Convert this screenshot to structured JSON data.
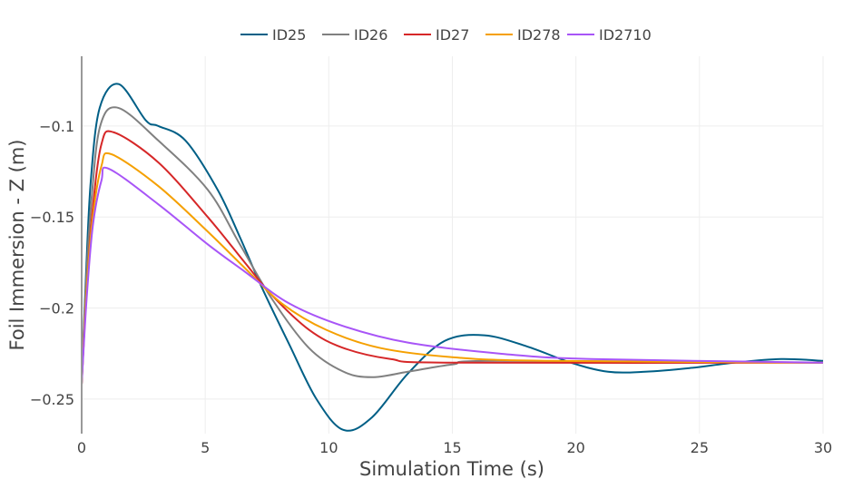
{
  "chart_data": {
    "type": "line",
    "title": "",
    "xlabel": "Simulation Time (s)",
    "ylabel": "Foil Immersion - Z (m)",
    "xlim": [
      0,
      30
    ],
    "ylim": [
      -0.269,
      -0.0617
    ],
    "xticks": [
      0,
      5,
      10,
      15,
      20,
      25,
      30
    ],
    "xtick_labels": [
      "0",
      "5",
      "10",
      "15",
      "20",
      "25",
      "30"
    ],
    "yticks": [
      -0.1,
      -0.15,
      -0.2,
      -0.25
    ],
    "ytick_labels": [
      "−0.1",
      "−0.15",
      "−0.2",
      "−0.25"
    ],
    "grid": true,
    "legend_placement": "top-center",
    "series": [
      {
        "name": "ID25",
        "color": "#005f86",
        "x": [
          0,
          0.18,
          0.37,
          0.73,
          1.5,
          2.6,
          3.1,
          4.2,
          5.5,
          6.4,
          7.3,
          8.4,
          9.5,
          10.6,
          11.75,
          13.2,
          14.7,
          16.3,
          18,
          19.8,
          21.3,
          22.8,
          24.6,
          26.4,
          28.3,
          30
        ],
        "y": [
          -0.242,
          -0.18,
          -0.13,
          -0.09,
          -0.077,
          -0.097,
          -0.1,
          -0.108,
          -0.135,
          -0.161,
          -0.189,
          -0.22,
          -0.25,
          -0.267,
          -0.26,
          -0.236,
          -0.218,
          -0.215,
          -0.221,
          -0.23,
          -0.235,
          -0.235,
          -0.233,
          -0.23,
          -0.228,
          -0.229
        ]
      },
      {
        "name": "ID26",
        "color": "#808080",
        "x": [
          0,
          0.18,
          0.4,
          0.75,
          1.47,
          3.1,
          5.1,
          6.4,
          7.7,
          9.2,
          10.6,
          11.75,
          13.2,
          15,
          16.9,
          30
        ],
        "y": [
          -0.242,
          -0.185,
          -0.14,
          -0.1,
          -0.09,
          -0.108,
          -0.135,
          -0.165,
          -0.195,
          -0.222,
          -0.235,
          -0.238,
          -0.235,
          -0.231,
          -0.229,
          -0.23
        ]
      },
      {
        "name": "ID27",
        "color": "#d62728",
        "x": [
          0,
          0.2,
          0.45,
          0.8,
          1.3,
          3.1,
          5.1,
          6.6,
          7.7,
          9.2,
          10.6,
          12.5,
          15,
          30
        ],
        "y": [
          -0.242,
          -0.19,
          -0.145,
          -0.11,
          -0.1035,
          -0.12,
          -0.15,
          -0.175,
          -0.193,
          -0.212,
          -0.222,
          -0.228,
          -0.23,
          -0.23
        ]
      },
      {
        "name": "ID278",
        "color": "#f5a000",
        "x": [
          0,
          0.2,
          0.45,
          0.8,
          1.2,
          3.1,
          5.1,
          6.6,
          8.1,
          9.9,
          12.1,
          15,
          18.7,
          30
        ],
        "y": [
          -0.242,
          -0.19,
          -0.15,
          -0.122,
          -0.1155,
          -0.133,
          -0.158,
          -0.178,
          -0.1975,
          -0.212,
          -0.222,
          -0.227,
          -0.229,
          -0.23
        ]
      },
      {
        "name": "ID2710",
        "color": "#a855f7",
        "x": [
          0,
          0.2,
          0.45,
          0.8,
          1.1,
          3.1,
          5.1,
          6.6,
          8.4,
          10.6,
          13.2,
          16.9,
          20.6,
          30
        ],
        "y": [
          -0.242,
          -0.195,
          -0.155,
          -0.13,
          -0.1235,
          -0.143,
          -0.165,
          -0.18,
          -0.1975,
          -0.21,
          -0.219,
          -0.225,
          -0.228,
          -0.23
        ]
      }
    ]
  }
}
